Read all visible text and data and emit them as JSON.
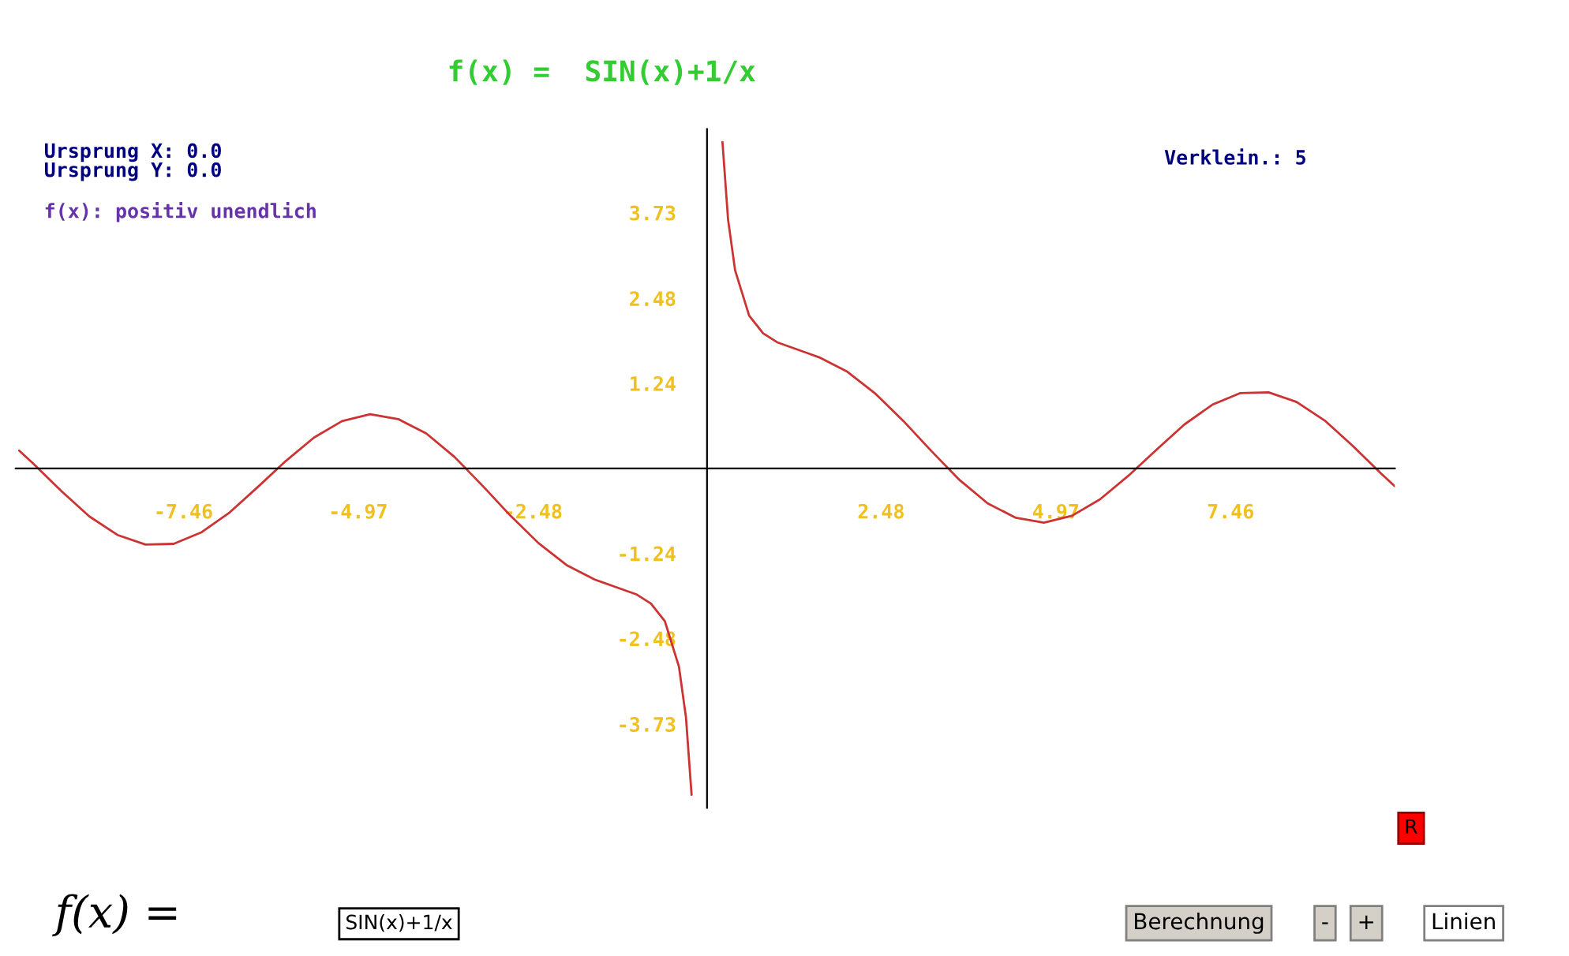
{
  "chart_data": {
    "type": "line",
    "title": "f(x) =  SIN(x)+1/x",
    "annotations": [
      "Ursprung X: 0.0",
      "Ursprung Y: 0.0",
      "f(x): positiv unendlich",
      "Verklein.: 5",
      "f(x) =",
      "SIN(x)+1/x",
      "Berechnung",
      "-",
      "+",
      "Linien",
      "R"
    ],
    "series": [
      {
        "color": "#cc3333",
        "x": [
          -9.8,
          -9.6,
          -9.2,
          -8.8,
          -8.4,
          -8.0,
          -7.6,
          -7.2,
          -6.8,
          -6.4,
          -6.0,
          -5.6,
          -5.2,
          -4.8,
          -4.4,
          -4.0,
          -3.6,
          -3.2,
          -2.8,
          -2.4,
          -2.0,
          -1.6,
          -1.3,
          -1.0,
          -0.8,
          -0.6,
          -0.4,
          -0.3,
          -0.22
        ],
        "values": [
          0.26,
          0.07,
          -0.33,
          -0.7,
          -0.97,
          -1.11,
          -1.1,
          -0.93,
          -0.64,
          -0.27,
          0.11,
          0.45,
          0.69,
          0.79,
          0.72,
          0.51,
          0.17,
          -0.25,
          -0.69,
          -1.09,
          -1.41,
          -1.62,
          -1.73,
          -1.84,
          -1.97,
          -2.23,
          -2.89,
          -3.63,
          -4.76
        ]
      },
      {
        "color": "#cc3333",
        "x": [
          0.22,
          0.3,
          0.4,
          0.6,
          0.8,
          1.0,
          1.3,
          1.6,
          2.0,
          2.4,
          2.8,
          3.2,
          3.6,
          4.0,
          4.4,
          4.8,
          5.2,
          5.6,
          6.0,
          6.4,
          6.8,
          7.2,
          7.6,
          8.0,
          8.4,
          8.8,
          9.2,
          9.6,
          9.8
        ],
        "values": [
          4.76,
          3.63,
          2.89,
          2.23,
          1.97,
          1.84,
          1.73,
          1.62,
          1.41,
          1.09,
          0.69,
          0.25,
          -0.17,
          -0.51,
          -0.72,
          -0.79,
          -0.69,
          -0.45,
          -0.11,
          0.27,
          0.64,
          0.93,
          1.1,
          1.11,
          0.97,
          0.7,
          0.33,
          -0.07,
          -0.26
        ]
      }
    ],
    "xlim": [
      -9.85,
      9.8
    ],
    "ylim": [
      -4.95,
      4.95
    ],
    "xticks": [
      -7.46,
      -4.97,
      -2.48,
      2.48,
      4.97,
      7.46
    ],
    "yticks": [
      -3.73,
      -2.48,
      -1.24,
      1.24,
      2.48,
      3.73
    ],
    "grid": false,
    "legend": false,
    "marker": "none",
    "line_style": "solid"
  }
}
